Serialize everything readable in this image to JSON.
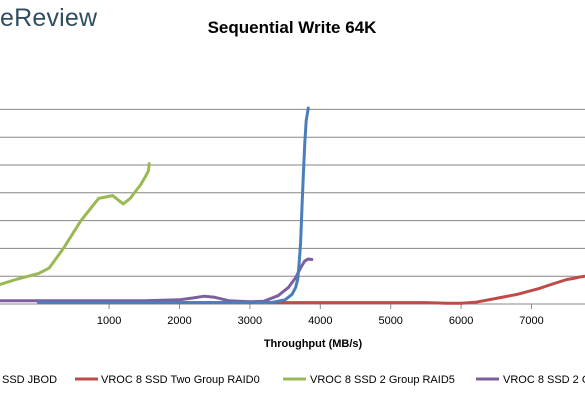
{
  "brand": {
    "text": "eReview",
    "color": "#2f4f5f"
  },
  "chart_data": {
    "type": "line",
    "title": "Sequential Write 64K",
    "xlabel": "Throughput (MB/s)",
    "ylabel": "",
    "xlim": [
      -550,
      7760
    ],
    "ylim": [
      0,
      10
    ],
    "x_ticks": [
      1000,
      2000,
      3000,
      4000,
      5000,
      6000,
      7000
    ],
    "x_tick_labels": [
      "1000",
      "2000",
      "3000",
      "4000",
      "5000",
      "6000",
      "7000"
    ],
    "y_gridlines": [
      0,
      1,
      2,
      3,
      4,
      5,
      6,
      7
    ],
    "grid": true,
    "legend_position": "bottom",
    "series": [
      {
        "name": "SSD JBOD",
        "color": "#4a7ebb",
        "x": [
          0,
          500,
          1000,
          1500,
          2000,
          2500,
          3000,
          3300,
          3500,
          3600,
          3650,
          3680,
          3700,
          3720,
          3740,
          3760,
          3780,
          3800,
          3830
        ],
        "y": [
          0.05,
          0.05,
          0.05,
          0.05,
          0.05,
          0.05,
          0.05,
          0.05,
          0.15,
          0.35,
          0.6,
          0.9,
          1.5,
          2.2,
          3.5,
          4.7,
          5.8,
          6.6,
          7.05
        ]
      },
      {
        "name": "VROC 8 SSD Two Group RAID0",
        "color": "#be4b48",
        "x": [
          0,
          1000,
          2000,
          3000,
          4000,
          5000,
          5500,
          5800,
          6000,
          6200,
          6500,
          6800,
          7100,
          7300,
          7500,
          7600,
          7700,
          7760
        ],
        "y": [
          0.05,
          0.05,
          0.05,
          0.05,
          0.05,
          0.05,
          0.05,
          0.03,
          0.03,
          0.06,
          0.2,
          0.35,
          0.55,
          0.72,
          0.88,
          0.92,
          0.98,
          1.0
        ]
      },
      {
        "name": "VROC 8 SSD 2 Group RAID5",
        "color": "#98b954",
        "x": [
          -550,
          -300,
          -150,
          0,
          150,
          350,
          600,
          850,
          1050,
          1200,
          1300,
          1450,
          1520,
          1560,
          1570
        ],
        "y": [
          0.7,
          0.9,
          1.0,
          1.1,
          1.3,
          2.0,
          3.0,
          3.8,
          3.9,
          3.6,
          3.8,
          4.3,
          4.6,
          4.8,
          5.05
        ]
      },
      {
        "name": "VROC 8 SSD 2 G",
        "color": "#7d5fa0",
        "x": [
          -550,
          0,
          500,
          1000,
          1500,
          2000,
          2200,
          2350,
          2500,
          2700,
          3000,
          3200,
          3400,
          3550,
          3650,
          3720,
          3780,
          3830,
          3880
        ],
        "y": [
          0.12,
          0.12,
          0.12,
          0.12,
          0.12,
          0.15,
          0.22,
          0.28,
          0.24,
          0.12,
          0.08,
          0.1,
          0.3,
          0.6,
          0.95,
          1.3,
          1.55,
          1.62,
          1.6
        ]
      }
    ]
  }
}
